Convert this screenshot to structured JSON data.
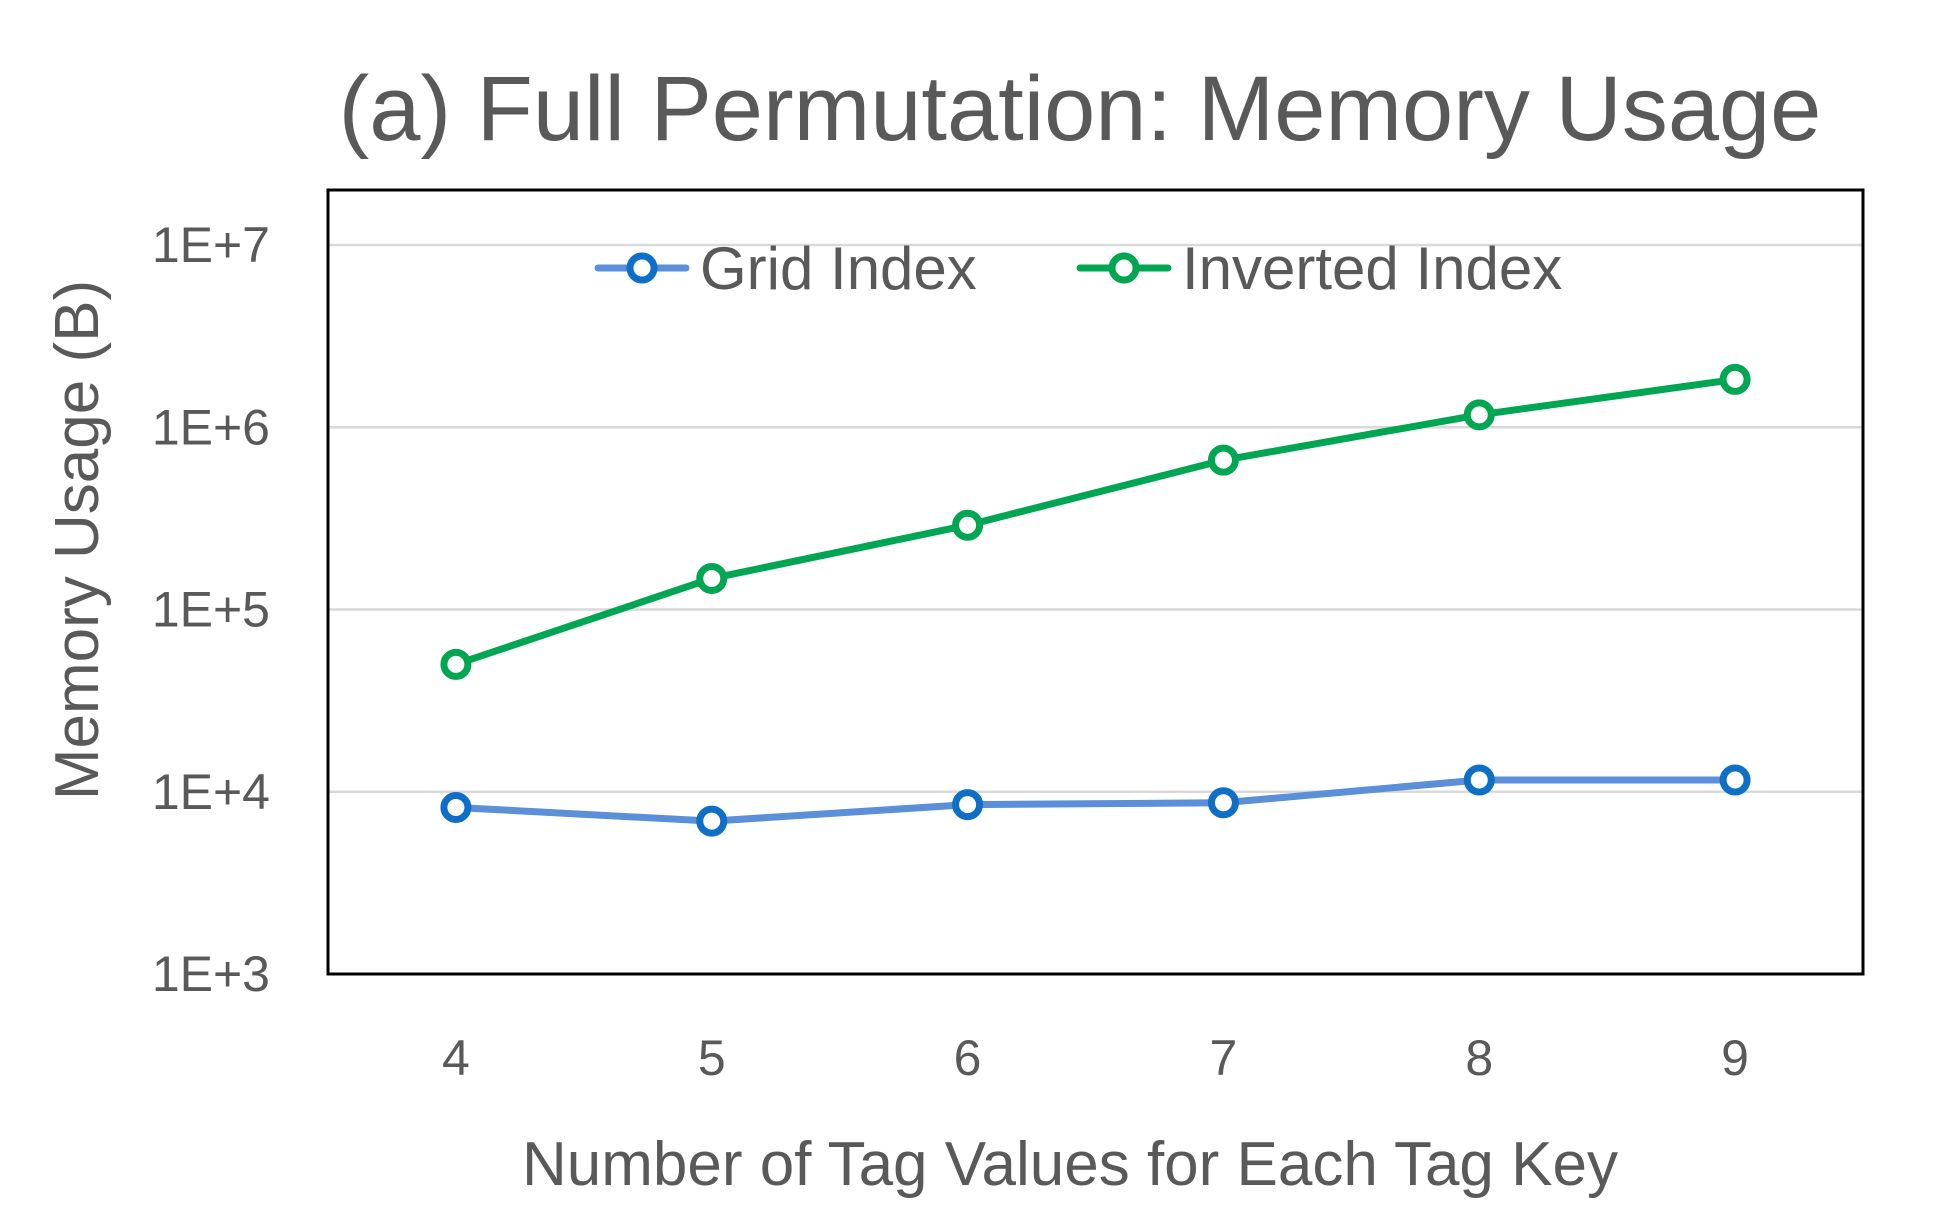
{
  "chart_data": {
    "type": "line",
    "title": "(a) Full Permutation: Memory Usage",
    "xlabel": "Number of Tag Values for Each Tag Key",
    "ylabel": "Memory Usage (B)",
    "x": [
      4,
      5,
      6,
      7,
      8,
      9
    ],
    "x_tick_labels": [
      "4",
      "5",
      "6",
      "7",
      "8",
      "9"
    ],
    "y_scale": "log",
    "ylim": [
      1000,
      10000000
    ],
    "y_ticks": [
      1000,
      10000,
      100000,
      1000000,
      10000000
    ],
    "y_tick_labels": [
      "1E+3",
      "1E+4",
      "1E+5",
      "1E+6",
      "1E+7"
    ],
    "grid": true,
    "legend_position": "top-inside",
    "series": [
      {
        "name": "Grid Index",
        "color": "#5B8FD8",
        "marker_color": "#0F6FC6",
        "values": [
          8200,
          6900,
          8500,
          8700,
          11600,
          11600
        ]
      },
      {
        "name": "Inverted Index",
        "color": "#00A651",
        "marker_color": "#00A651",
        "values": [
          50000,
          148000,
          290000,
          660000,
          1170000,
          1830000
        ]
      }
    ]
  }
}
